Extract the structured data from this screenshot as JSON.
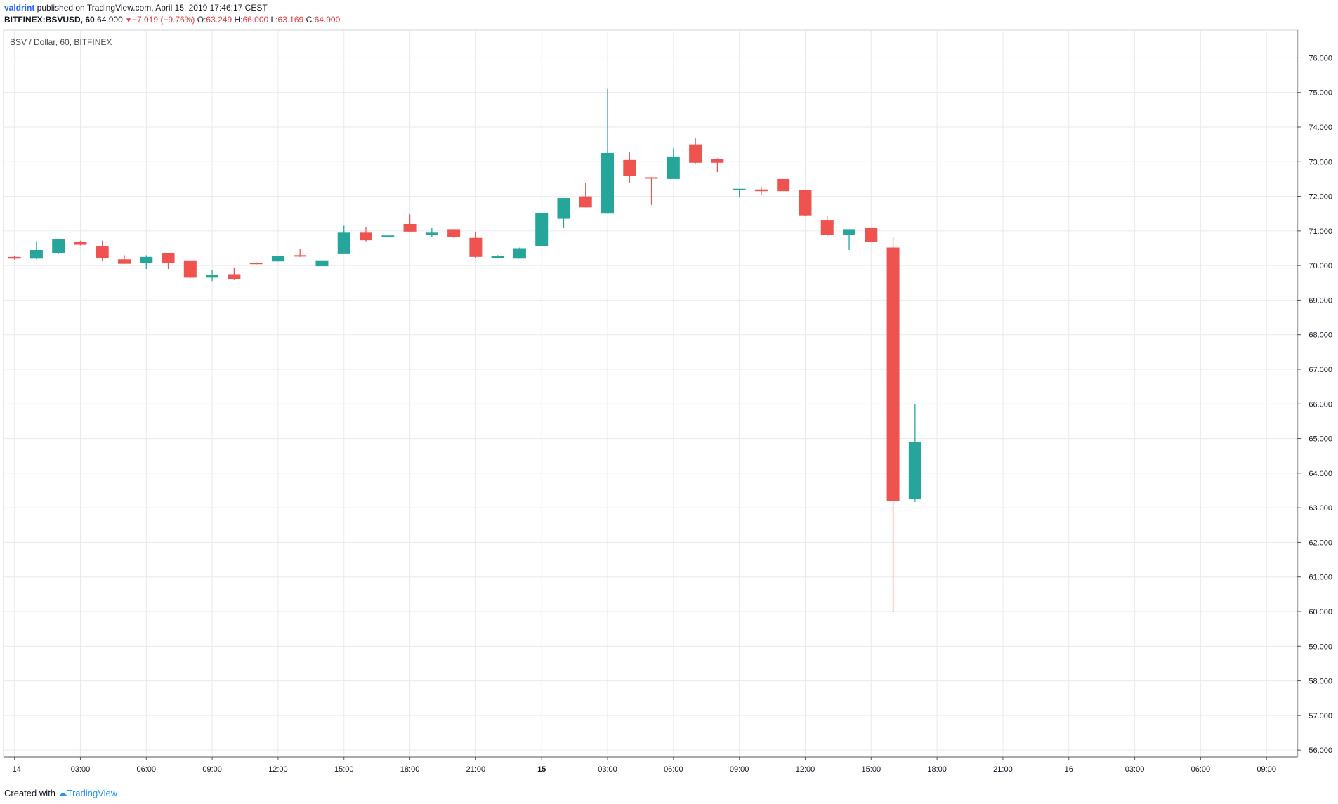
{
  "header": {
    "author": "valdrint",
    "published": " published on TradingView.com, April 15, 2019 17:46:17 CEST",
    "symbol": "BITFINEX:BSVUSD, 60",
    "last": "64.900",
    "change": "−7.019 (−9.76%)",
    "o_label": "O:",
    "o_value": "63.249",
    "h_label": "H:",
    "h_value": "66.000",
    "l_label": "L:",
    "l_value": "63.169",
    "c_label": "C:",
    "c_value": "64.900"
  },
  "footer": {
    "created": "Created with",
    "brand": "TradingView"
  },
  "colors": {
    "up": "#26a69a",
    "down": "#ef5350",
    "grid": "#e6ebf0",
    "axis": "#555555"
  },
  "chart_data": {
    "type": "candlestick",
    "title": "BSV / Dollar, 60, BITFINEX",
    "ylim": [
      55.8,
      76.8
    ],
    "y_ticks": [
      "56.000",
      "57.000",
      "58.000",
      "59.000",
      "60.000",
      "61.000",
      "62.000",
      "63.000",
      "64.000",
      "65.000",
      "66.000",
      "67.000",
      "68.000",
      "69.000",
      "70.000",
      "71.000",
      "72.000",
      "73.000",
      "74.000",
      "75.000",
      "76.000"
    ],
    "x_ticks": [
      {
        "label": "14",
        "hour": 0,
        "bold": false
      },
      {
        "label": "03:00",
        "hour": 3,
        "bold": false
      },
      {
        "label": "06:00",
        "hour": 6,
        "bold": false
      },
      {
        "label": "09:00",
        "hour": 9,
        "bold": false
      },
      {
        "label": "12:00",
        "hour": 12,
        "bold": false
      },
      {
        "label": "15:00",
        "hour": 15,
        "bold": false
      },
      {
        "label": "18:00",
        "hour": 18,
        "bold": false
      },
      {
        "label": "21:00",
        "hour": 21,
        "bold": false
      },
      {
        "label": "15",
        "hour": 24,
        "bold": true
      },
      {
        "label": "03:00",
        "hour": 27,
        "bold": false
      },
      {
        "label": "06:00",
        "hour": 30,
        "bold": false
      },
      {
        "label": "09:00",
        "hour": 33,
        "bold": false
      },
      {
        "label": "12:00",
        "hour": 36,
        "bold": false
      },
      {
        "label": "15:00",
        "hour": 39,
        "bold": false
      },
      {
        "label": "18:00",
        "hour": 42,
        "bold": false
      },
      {
        "label": "21:00",
        "hour": 45,
        "bold": false
      },
      {
        "label": "16",
        "hour": 48,
        "bold": false
      },
      {
        "label": "03:00",
        "hour": 51,
        "bold": false
      },
      {
        "label": "06:00",
        "hour": 54,
        "bold": false
      },
      {
        "label": "09:00",
        "hour": 57,
        "bold": false
      }
    ],
    "xlim_hours": [
      -0.5,
      58.4
    ],
    "candles": [
      {
        "o": 70.25,
        "h": 70.28,
        "l": 70.17,
        "c": 70.2
      },
      {
        "o": 70.2,
        "h": 70.7,
        "l": 70.18,
        "c": 70.45
      },
      {
        "o": 70.35,
        "h": 70.78,
        "l": 70.33,
        "c": 70.76
      },
      {
        "o": 70.68,
        "h": 70.72,
        "l": 70.58,
        "c": 70.6
      },
      {
        "o": 70.55,
        "h": 70.72,
        "l": 70.12,
        "c": 70.22
      },
      {
        "o": 70.18,
        "h": 70.3,
        "l": 70.05,
        "c": 70.05
      },
      {
        "o": 70.07,
        "h": 70.3,
        "l": 69.9,
        "c": 70.25
      },
      {
        "o": 70.35,
        "h": 70.35,
        "l": 69.9,
        "c": 70.08
      },
      {
        "o": 70.15,
        "h": 70.15,
        "l": 69.63,
        "c": 69.65
      },
      {
        "o": 69.65,
        "h": 69.88,
        "l": 69.55,
        "c": 69.72
      },
      {
        "o": 69.75,
        "h": 69.93,
        "l": 69.58,
        "c": 69.6
      },
      {
        "o": 70.08,
        "h": 70.1,
        "l": 70.02,
        "c": 70.04
      },
      {
        "o": 70.12,
        "h": 70.28,
        "l": 70.12,
        "c": 70.28
      },
      {
        "o": 70.3,
        "h": 70.48,
        "l": 70.25,
        "c": 70.27
      },
      {
        "o": 69.98,
        "h": 70.16,
        "l": 69.98,
        "c": 70.15
      },
      {
        "o": 70.33,
        "h": 71.15,
        "l": 70.33,
        "c": 70.95
      },
      {
        "o": 70.95,
        "h": 71.12,
        "l": 70.7,
        "c": 70.73
      },
      {
        "o": 70.85,
        "h": 70.9,
        "l": 70.85,
        "c": 70.87
      },
      {
        "o": 71.2,
        "h": 71.48,
        "l": 70.97,
        "c": 70.98
      },
      {
        "o": 70.88,
        "h": 71.1,
        "l": 70.82,
        "c": 70.95
      },
      {
        "o": 71.05,
        "h": 71.05,
        "l": 70.8,
        "c": 70.82
      },
      {
        "o": 70.8,
        "h": 70.98,
        "l": 70.22,
        "c": 70.25
      },
      {
        "o": 70.22,
        "h": 70.3,
        "l": 70.2,
        "c": 70.28
      },
      {
        "o": 70.2,
        "h": 70.52,
        "l": 70.2,
        "c": 70.5
      },
      {
        "o": 70.55,
        "h": 71.52,
        "l": 70.55,
        "c": 71.52
      },
      {
        "o": 71.35,
        "h": 71.95,
        "l": 71.1,
        "c": 71.95
      },
      {
        "o": 72.0,
        "h": 72.4,
        "l": 71.68,
        "c": 71.68
      },
      {
        "o": 71.5,
        "h": 75.1,
        "l": 71.5,
        "c": 73.25
      },
      {
        "o": 73.05,
        "h": 73.28,
        "l": 72.38,
        "c": 72.58
      },
      {
        "o": 72.55,
        "h": 72.55,
        "l": 71.75,
        "c": 72.53
      },
      {
        "o": 72.5,
        "h": 73.38,
        "l": 72.5,
        "c": 73.15
      },
      {
        "o": 73.5,
        "h": 73.68,
        "l": 72.95,
        "c": 72.97
      },
      {
        "o": 73.08,
        "h": 73.1,
        "l": 72.7,
        "c": 72.97
      },
      {
        "o": 72.2,
        "h": 72.2,
        "l": 71.98,
        "c": 72.22
      },
      {
        "o": 72.2,
        "h": 72.25,
        "l": 72.03,
        "c": 72.15
      },
      {
        "o": 72.5,
        "h": 72.5,
        "l": 72.15,
        "c": 72.15
      },
      {
        "o": 72.18,
        "h": 72.18,
        "l": 71.42,
        "c": 71.45
      },
      {
        "o": 71.3,
        "h": 71.45,
        "l": 70.85,
        "c": 70.88
      },
      {
        "o": 70.88,
        "h": 71.05,
        "l": 70.45,
        "c": 71.05
      },
      {
        "o": 71.1,
        "h": 71.1,
        "l": 70.67,
        "c": 70.68
      },
      {
        "o": 70.52,
        "h": 70.83,
        "l": 60.0,
        "c": 63.2
      },
      {
        "o": 63.249,
        "h": 66.0,
        "l": 63.169,
        "c": 64.9
      }
    ]
  }
}
